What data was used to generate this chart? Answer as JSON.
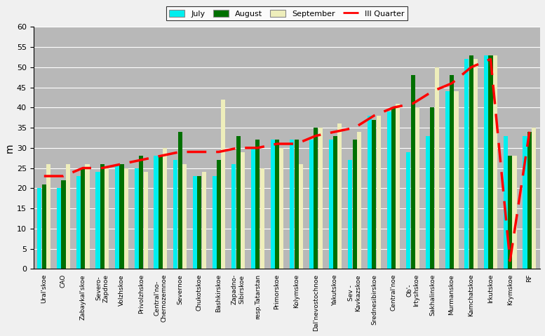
{
  "categories": [
    "Ural'skoe",
    "CAO",
    "Zabaykal'skoe",
    "Severo-\nZapdnoe",
    "Volzhskoe",
    "Privolzhskoe",
    "Central'no-\nChernozemnoe",
    "Severnoe",
    "Chukotskoe",
    "Bashkirskoe",
    "Zapadno-\nSibirskoe",
    "resp.Tatarstan",
    "Primorskoe",
    "Kolymskoe",
    "Dal'nevostochnoe",
    "Yakutskoe",
    "Sev -\nKavkazskoe",
    "Srednesibirskoe",
    "Central'noe",
    "Ob'-\nIrtyshskoe",
    "Sakhalinskoe",
    "Murmanskoe",
    "Kamchatskoe",
    "Irkutskoe",
    "Krymskoe",
    "RF"
  ],
  "july": [
    20,
    20,
    23,
    24,
    26,
    25,
    28,
    27,
    23,
    23,
    26,
    30,
    32,
    32,
    32,
    32,
    27,
    38,
    39,
    29,
    33,
    44,
    52,
    53,
    33,
    33
  ],
  "august": [
    21,
    22,
    25,
    26,
    26,
    28,
    28,
    34,
    23,
    27,
    33,
    32,
    32,
    32,
    35,
    33,
    32,
    37,
    40,
    48,
    40,
    48,
    53,
    53,
    28,
    34
  ],
  "september": [
    26,
    26,
    26,
    25,
    25,
    24,
    30,
    26,
    24,
    42,
    29,
    25,
    30,
    26,
    35,
    36,
    34,
    38,
    41,
    40,
    50,
    44,
    52,
    53,
    28,
    35
  ],
  "quarter": [
    23,
    23,
    25,
    25,
    26,
    27,
    28,
    29,
    29,
    29,
    30,
    30,
    31,
    31,
    33,
    34,
    35,
    38,
    40,
    41,
    44,
    46,
    50,
    52,
    2,
    34
  ],
  "bar_color_july": "#00EFEF",
  "bar_color_august": "#007000",
  "bar_color_september": "#EEEEBB",
  "line_color": "#FF0000",
  "bg_color": "#B8B8B8",
  "ylabel": "m",
  "ylim": [
    0,
    60
  ],
  "yticks": [
    0,
    5,
    10,
    15,
    20,
    25,
    30,
    35,
    40,
    45,
    50,
    55,
    60
  ]
}
